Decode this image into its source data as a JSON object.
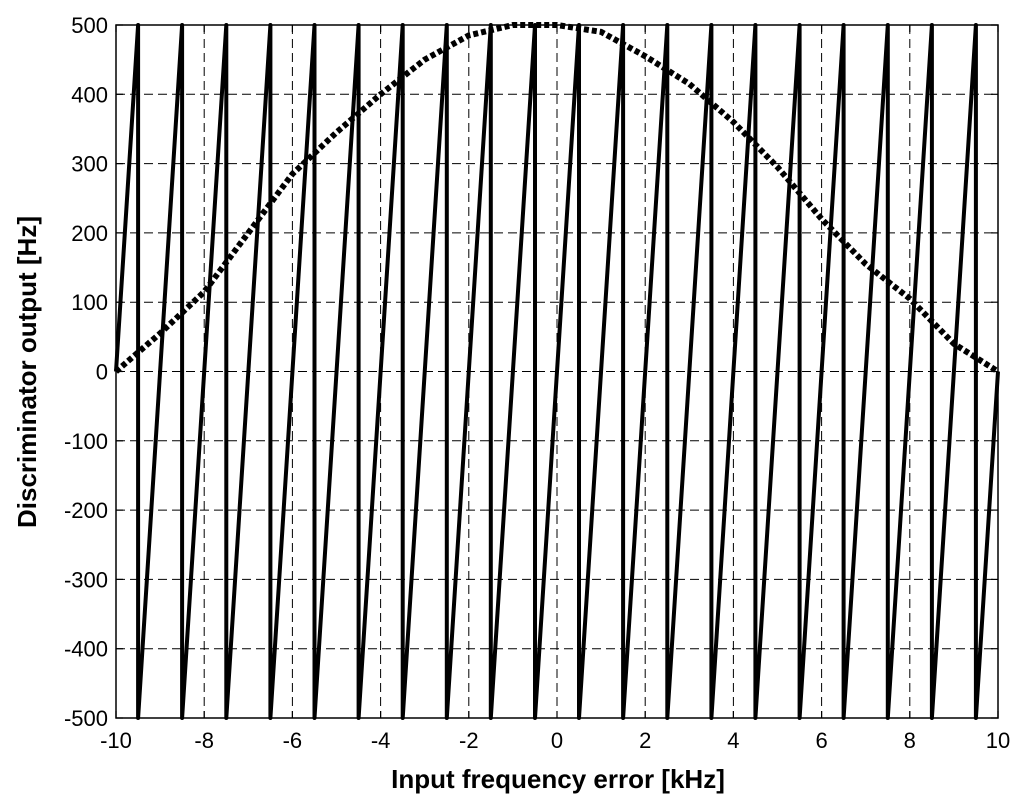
{
  "chart_data": {
    "type": "line",
    "title": "",
    "xlabel": "Input frequency error [kHz]",
    "ylabel": "Discriminator output [Hz]",
    "xlim": [
      -10,
      10
    ],
    "ylim": [
      -500,
      500
    ],
    "xticks": [
      "-10",
      "-8",
      "-6",
      "-4",
      "-2",
      "0",
      "2",
      "4",
      "6",
      "8",
      "10"
    ],
    "yticks": [
      "500",
      "400",
      "300",
      "200",
      "100",
      "0",
      "-100",
      "-200",
      "-300",
      "-400",
      "-500"
    ],
    "grid": true,
    "series": [
      {
        "style": "solid",
        "color": "#000000",
        "description": "sawtooth wrapping every 1 kHz",
        "x": [
          -10,
          -9.5,
          -9.5,
          -8.5,
          -8.5,
          -7.5,
          -7.5,
          -6.5,
          -6.5,
          -5.5,
          -5.5,
          -4.5,
          -4.5,
          -3.5,
          -3.5,
          -2.5,
          -2.5,
          -1.5,
          -1.5,
          -0.5,
          -0.5,
          0.5,
          0.5,
          1.5,
          1.5,
          2.5,
          2.5,
          3.5,
          3.5,
          4.5,
          4.5,
          5.5,
          5.5,
          6.5,
          6.5,
          7.5,
          7.5,
          8.5,
          8.5,
          9.5,
          9.5,
          10
        ],
        "y": [
          0,
          500,
          -500,
          500,
          -500,
          500,
          -500,
          500,
          -500,
          500,
          -500,
          500,
          -500,
          500,
          -500,
          500,
          -500,
          500,
          -500,
          500,
          -500,
          500,
          -500,
          500,
          -500,
          500,
          -500,
          500,
          -500,
          500,
          -500,
          500,
          -500,
          500,
          -500,
          500,
          -500,
          500,
          -500,
          500,
          -500,
          0
        ]
      },
      {
        "style": "dotted",
        "color": "#000000",
        "description": "envelope",
        "x": [
          -10,
          -9,
          -8,
          -7,
          -6,
          -5,
          -4,
          -3,
          -2,
          -1,
          0,
          1,
          2,
          3,
          4,
          5,
          6,
          7,
          8,
          9,
          10
        ],
        "y": [
          0,
          55,
          115,
          200,
          285,
          345,
          400,
          450,
          485,
          500,
          500,
          490,
          455,
          415,
          360,
          295,
          220,
          155,
          105,
          40,
          0
        ]
      }
    ]
  }
}
